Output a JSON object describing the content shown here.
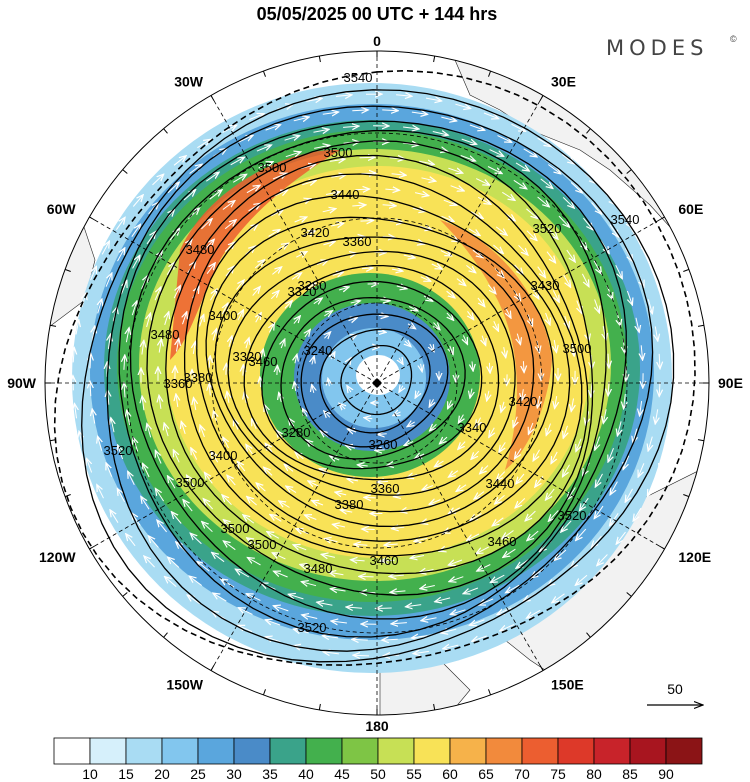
{
  "title": "05/05/2025  00 UTC  + 144 hrs",
  "brand": "MODES",
  "brand_mark": "©",
  "longitude_labels": [
    {
      "deg": 0,
      "text": "0"
    },
    {
      "deg": 30,
      "text": "30E"
    },
    {
      "deg": 60,
      "text": "60E"
    },
    {
      "deg": 90,
      "text": "90E"
    },
    {
      "deg": 120,
      "text": "120E"
    },
    {
      "deg": 150,
      "text": "150E"
    },
    {
      "deg": 180,
      "text": "180"
    },
    {
      "deg": 210,
      "text": "150W"
    },
    {
      "deg": 240,
      "text": "120W"
    },
    {
      "deg": 270,
      "text": "90W"
    },
    {
      "deg": 300,
      "text": "60W"
    },
    {
      "deg": 330,
      "text": "30W"
    }
  ],
  "wind_speed_colorbar": {
    "ticks": [
      "10",
      "15",
      "20",
      "25",
      "30",
      "35",
      "40",
      "45",
      "50",
      "55",
      "60",
      "65",
      "70",
      "75",
      "80",
      "85",
      "90"
    ],
    "colors": [
      "#ffffff",
      "#d6f0fb",
      "#a9dcf3",
      "#82c6ee",
      "#5aa6dd",
      "#4a8bc8",
      "#3aa38a",
      "#43b04d",
      "#7ec545",
      "#c7e055",
      "#f8e257",
      "#f6b24a",
      "#f28a3c",
      "#ec5e30",
      "#dd3929",
      "#c8232a",
      "#a8151f",
      "#8b1416"
    ]
  },
  "height_contour_labels": [
    "3540",
    "3500",
    "3500",
    "3480",
    "3440",
    "3420",
    "3360",
    "3320",
    "3280",
    "3240",
    "3400",
    "3480",
    "3380",
    "3360",
    "3320",
    "3460",
    "3520",
    "3500",
    "3500",
    "3400",
    "3280",
    "3260",
    "3380",
    "3360",
    "3340",
    "3420",
    "3430",
    "3520",
    "3540",
    "3500",
    "3440",
    "3460",
    "3460",
    "3480",
    "3500",
    "3520",
    "3520"
  ],
  "reference_vector": {
    "label": "50"
  }
}
